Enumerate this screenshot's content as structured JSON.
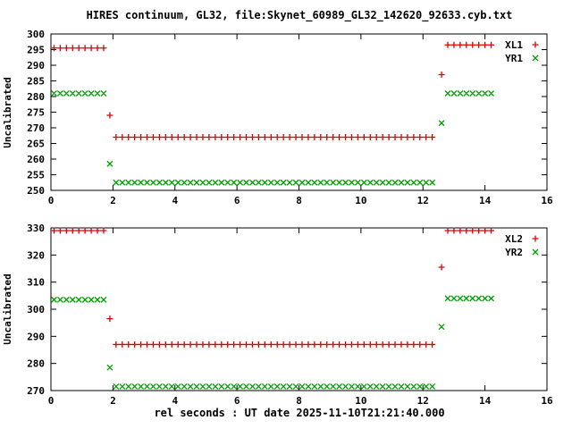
{
  "title": "HIRES continuum, GL32, file:Skynet_60989_GL32_142620_92633.cyb.txt",
  "xlabel": "rel seconds : UT date 2025-11-10T21:21:40.000",
  "colors": {
    "red": "#dd0000",
    "green": "#00a000",
    "axis": "#000000",
    "background": "#ffffff"
  },
  "chart_data": [
    {
      "type": "scatter",
      "ylabel": "Uncalibrated",
      "x_range": [
        0,
        16
      ],
      "y_range": [
        250,
        300
      ],
      "x_ticks": [
        0,
        2,
        4,
        6,
        8,
        10,
        12,
        14,
        16
      ],
      "y_ticks": [
        250,
        255,
        260,
        265,
        270,
        275,
        280,
        285,
        290,
        295,
        300
      ],
      "grid": false,
      "legend_position": "top-right",
      "series": [
        {
          "name": "XL1",
          "color": "#dd0000",
          "marker": "plus",
          "runs": [
            {
              "x0": 0.1,
              "x1": 1.7,
              "dx": 0.2,
              "y": 295.5
            },
            {
              "x0": 1.9,
              "x1": 1.9,
              "dx": 0.2,
              "y": 274
            },
            {
              "x0": 2.1,
              "x1": 12.3,
              "dx": 0.2,
              "y": 267
            },
            {
              "x0": 12.6,
              "x1": 12.6,
              "dx": 0.2,
              "y": 287
            },
            {
              "x0": 12.8,
              "x1": 14.2,
              "dx": 0.2,
              "y": 296.5
            }
          ]
        },
        {
          "name": "YR1",
          "color": "#00a000",
          "marker": "cross",
          "runs": [
            {
              "x0": 0.1,
              "x1": 1.7,
              "dx": 0.2,
              "y": 281
            },
            {
              "x0": 1.9,
              "x1": 1.9,
              "dx": 0.2,
              "y": 258.5
            },
            {
              "x0": 2.1,
              "x1": 12.3,
              "dx": 0.2,
              "y": 252.5
            },
            {
              "x0": 12.6,
              "x1": 12.6,
              "dx": 0.2,
              "y": 271.5
            },
            {
              "x0": 12.8,
              "x1": 14.2,
              "dx": 0.2,
              "y": 281
            }
          ]
        }
      ]
    },
    {
      "type": "scatter",
      "ylabel": "Uncalibrated",
      "x_range": [
        0,
        16
      ],
      "y_range": [
        270,
        330
      ],
      "x_ticks": [
        0,
        2,
        4,
        6,
        8,
        10,
        12,
        14,
        16
      ],
      "y_ticks": [
        270,
        280,
        290,
        300,
        310,
        320,
        330
      ],
      "grid": false,
      "legend_position": "top-right",
      "series": [
        {
          "name": "XL2",
          "color": "#dd0000",
          "marker": "plus",
          "runs": [
            {
              "x0": 0.1,
              "x1": 1.7,
              "dx": 0.2,
              "y": 329
            },
            {
              "x0": 1.9,
              "x1": 1.9,
              "dx": 0.2,
              "y": 296.5
            },
            {
              "x0": 2.1,
              "x1": 12.3,
              "dx": 0.2,
              "y": 287
            },
            {
              "x0": 12.6,
              "x1": 12.6,
              "dx": 0.2,
              "y": 315.5
            },
            {
              "x0": 12.8,
              "x1": 14.2,
              "dx": 0.2,
              "y": 329
            }
          ]
        },
        {
          "name": "YR2",
          "color": "#00a000",
          "marker": "cross",
          "runs": [
            {
              "x0": 0.1,
              "x1": 1.7,
              "dx": 0.2,
              "y": 303.5
            },
            {
              "x0": 1.9,
              "x1": 1.9,
              "dx": 0.2,
              "y": 278.5
            },
            {
              "x0": 2.1,
              "x1": 12.3,
              "dx": 0.2,
              "y": 271.5
            },
            {
              "x0": 12.6,
              "x1": 12.6,
              "dx": 0.2,
              "y": 293.5
            },
            {
              "x0": 12.8,
              "x1": 14.2,
              "dx": 0.2,
              "y": 304
            }
          ]
        }
      ]
    }
  ]
}
